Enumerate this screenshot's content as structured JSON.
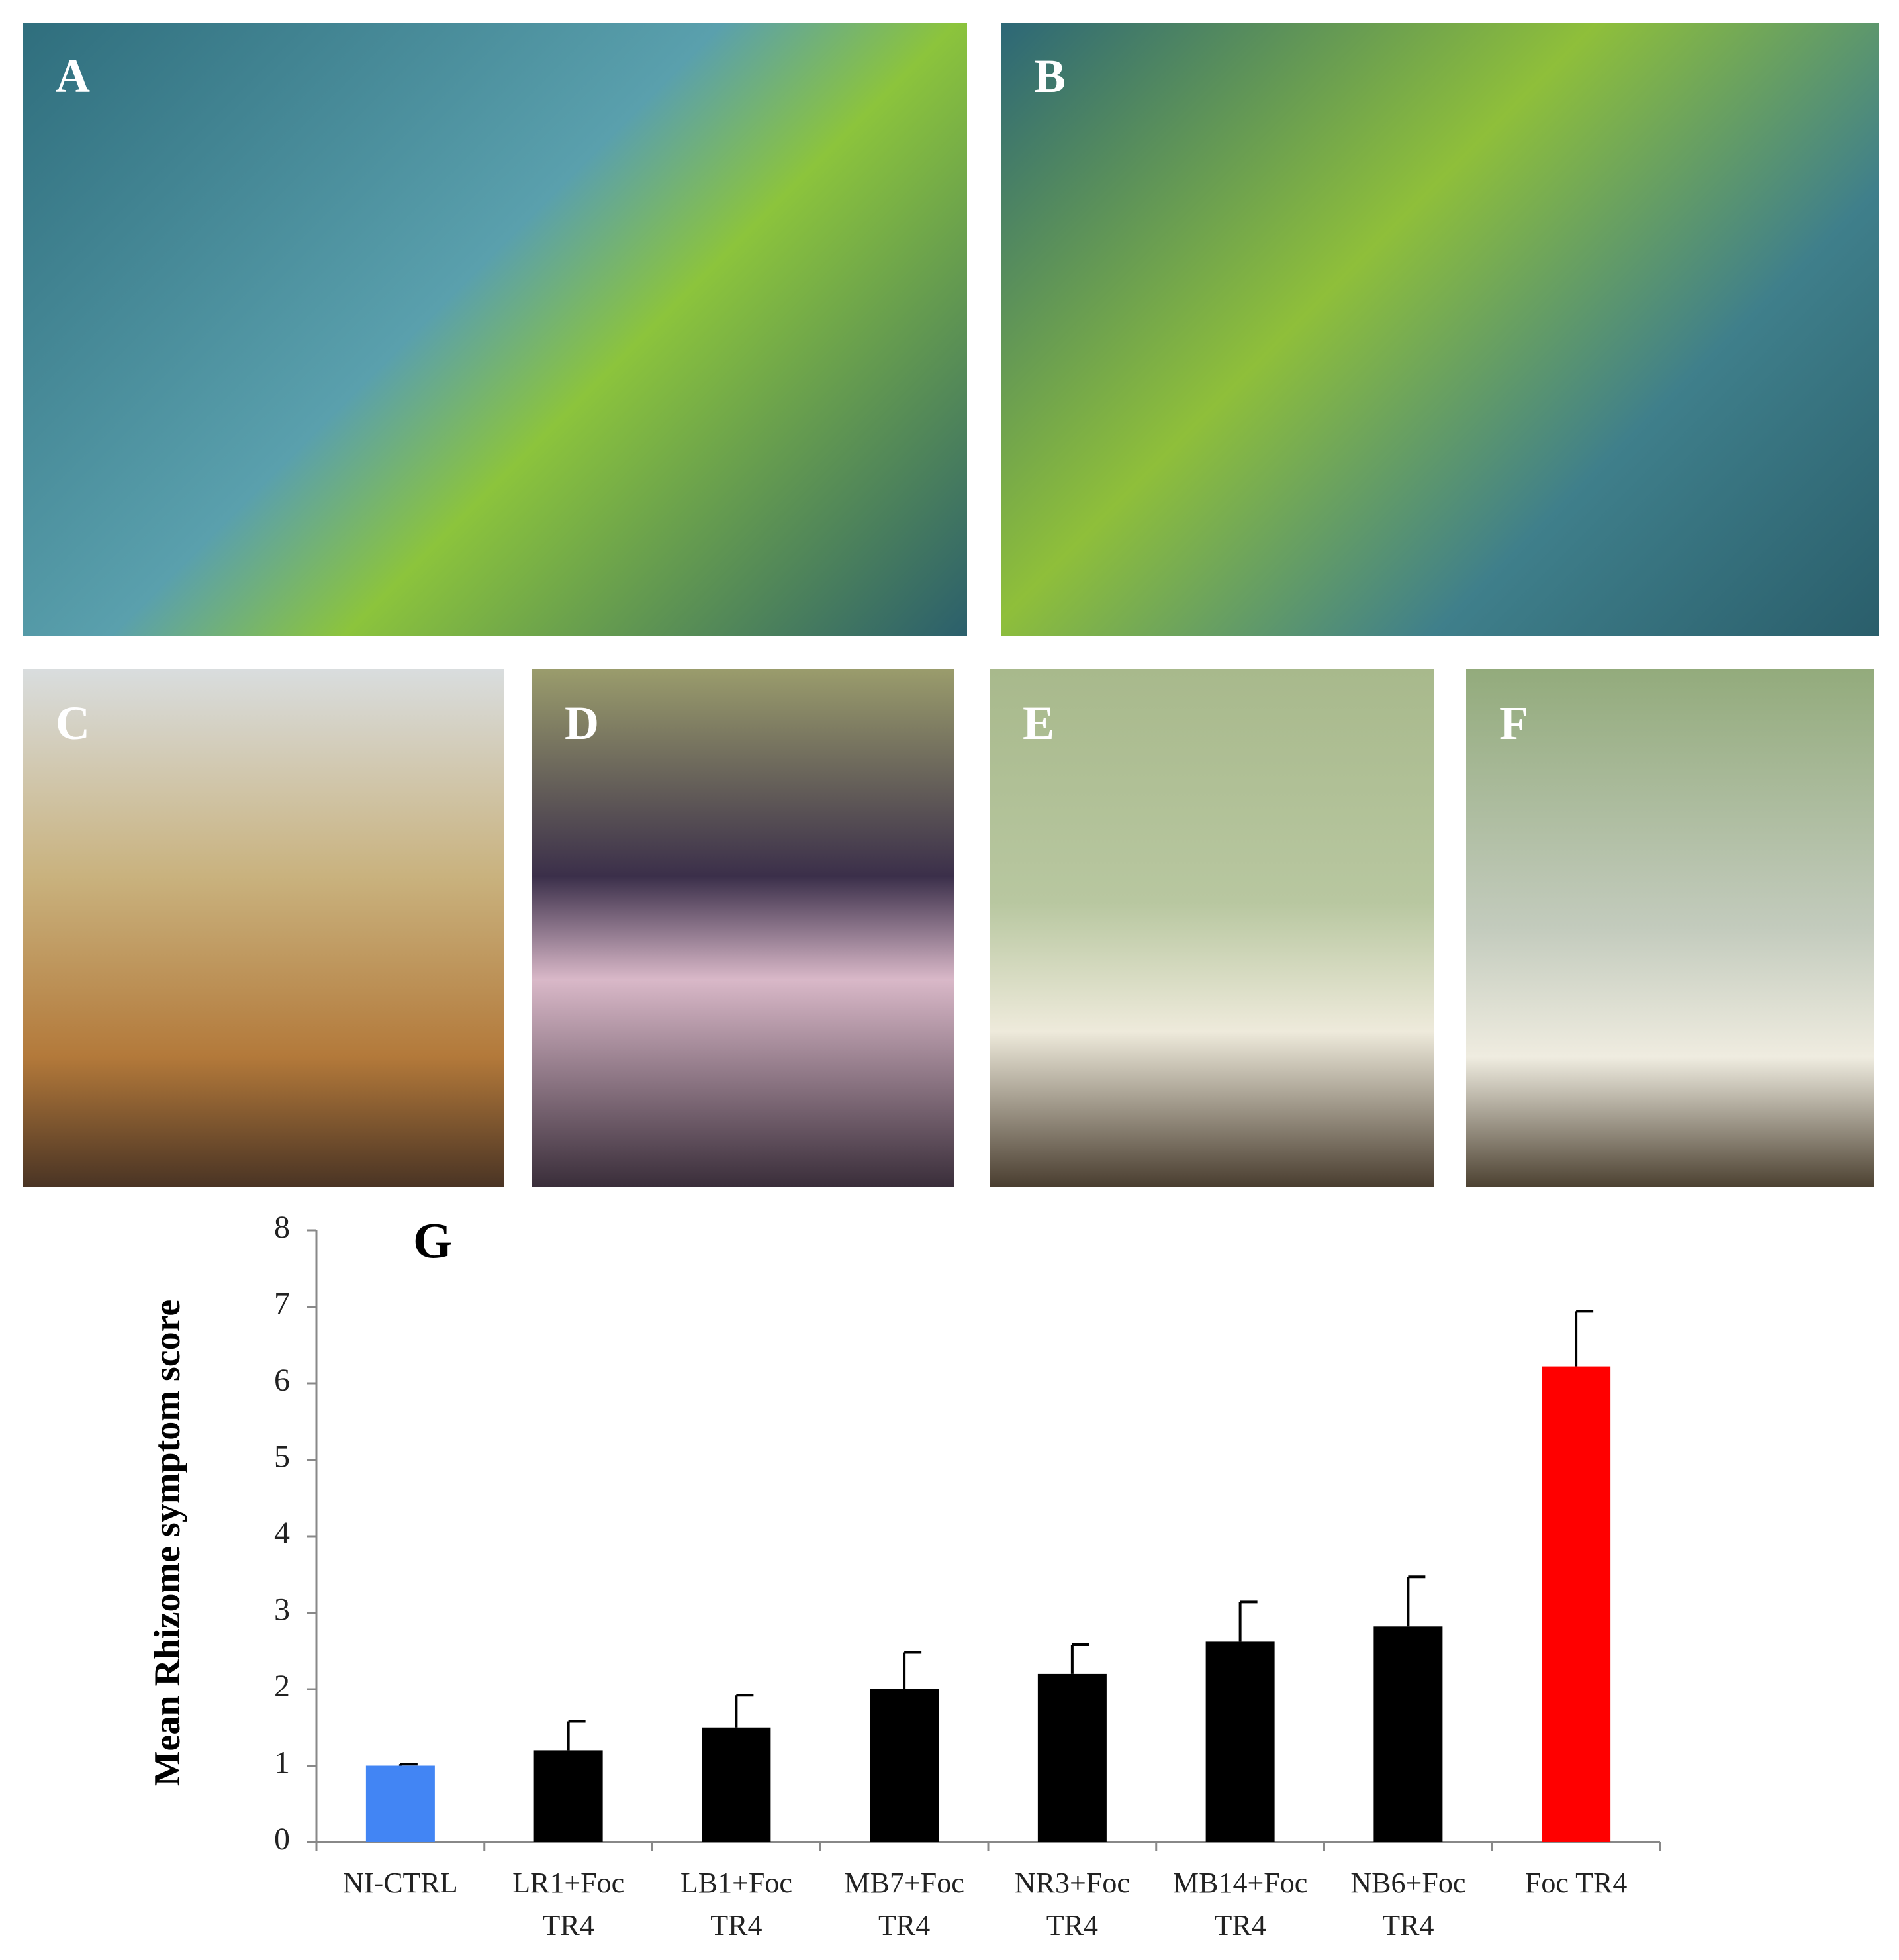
{
  "panels": {
    "labels": [
      "A",
      "B",
      "C",
      "D",
      "E",
      "F"
    ]
  },
  "chart_data": {
    "type": "bar",
    "panel_label": "G",
    "ylabel": "Mean Rhizome symptom score",
    "categories": [
      "NI-CTRL",
      "LR1+Foc TR4",
      "LB1+Foc TR4",
      "MB7+Foc TR4",
      "NR3+Foc TR4",
      "MB14+Foc TR4",
      "NB6+Foc TR4",
      "Foc TR4"
    ],
    "values": [
      1.0,
      1.2,
      1.5,
      2.0,
      2.2,
      2.62,
      2.82,
      6.22
    ],
    "errors": [
      0.02,
      0.38,
      0.42,
      0.48,
      0.38,
      0.52,
      0.65,
      0.72
    ],
    "colors": [
      "#4285f4",
      "#000000",
      "#000000",
      "#000000",
      "#000000",
      "#000000",
      "#000000",
      "#ff0000"
    ],
    "ylim": [
      0,
      8
    ],
    "yticks": [
      0,
      1,
      2,
      3,
      4,
      5,
      6,
      7,
      8
    ]
  }
}
